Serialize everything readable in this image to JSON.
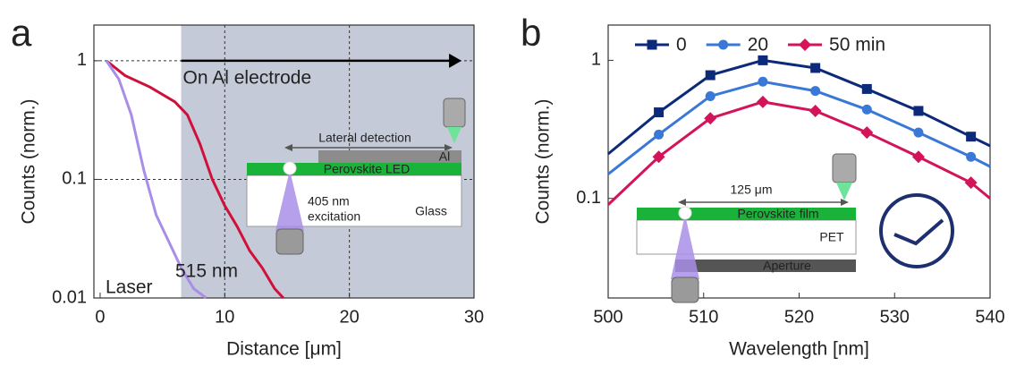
{
  "chart_data": [
    {
      "type": "line",
      "panel": "a",
      "xlabel": "Distance [μm]",
      "ylabel": "Counts (norm.)",
      "xlim": [
        -0.5,
        30
      ],
      "xticks": [
        0,
        10,
        20,
        30
      ],
      "ylim": [
        0.01,
        2
      ],
      "yticks": [
        0.01,
        0.1,
        1
      ],
      "log_y": true,
      "grid": true,
      "shaded_x": [
        6.5,
        30
      ],
      "shade_color": "#c5cad8",
      "arrow_text": "On Al electrode",
      "arrow_x": [
        6.5,
        29
      ],
      "arrow_y": 1,
      "annotations": [
        "Laser",
        "515 nm"
      ],
      "inset": {
        "detection": "Lateral detection",
        "electrode": "Al",
        "layer": "Perovskite LED",
        "excitation": [
          "405 nm",
          "excitation"
        ],
        "substrate": "Glass"
      },
      "series": [
        {
          "name": "515 nm",
          "color": "#d0103a",
          "x": [
            0.5,
            2,
            4,
            6,
            7,
            8,
            9,
            10,
            11,
            12,
            13,
            14,
            14.7
          ],
          "values": [
            1,
            0.75,
            0.6,
            0.45,
            0.35,
            0.2,
            0.1,
            0.06,
            0.04,
            0.025,
            0.018,
            0.012,
            0.01
          ]
        },
        {
          "name": "Laser",
          "color": "#a98ee8",
          "x": [
            0.5,
            1.5,
            2.5,
            3.5,
            4.5,
            5.5,
            6.5,
            7.5,
            8.5
          ],
          "values": [
            1,
            0.7,
            0.35,
            0.12,
            0.05,
            0.03,
            0.018,
            0.012,
            0.01
          ]
        }
      ]
    },
    {
      "type": "line",
      "panel": "b",
      "xlabel": "Wavelength [nm]",
      "ylabel": "Counts (norm.)",
      "xlim": [
        500,
        540
      ],
      "xticks": [
        500,
        510,
        520,
        530,
        540
      ],
      "ylim": [
        0.019,
        1.8
      ],
      "yticks": [
        0.1,
        1
      ],
      "log_y": true,
      "grid": false,
      "legend": "top",
      "inset": {
        "distance": "125 μm",
        "layer": "Perovskite film",
        "substrate": "PET",
        "aperture": "Aperture"
      },
      "x": [
        500,
        505.3,
        510.7,
        516.2,
        521.7,
        527.1,
        532.5,
        538,
        540
      ],
      "series": [
        {
          "name": "0",
          "color": "#0d2a7a",
          "marker": "square",
          "values": [
            0.21,
            0.42,
            0.78,
            1.0,
            0.88,
            0.62,
            0.43,
            0.28,
            0.24
          ]
        },
        {
          "name": "20",
          "color": "#3a78d8",
          "marker": "circle",
          "values": [
            0.15,
            0.29,
            0.55,
            0.7,
            0.6,
            0.44,
            0.3,
            0.2,
            0.17
          ]
        },
        {
          "name": "50 min",
          "color": "#d4145a",
          "marker": "diamond",
          "values": [
            0.09,
            0.2,
            0.38,
            0.5,
            0.43,
            0.3,
            0.2,
            0.13,
            0.1
          ]
        }
      ]
    }
  ]
}
